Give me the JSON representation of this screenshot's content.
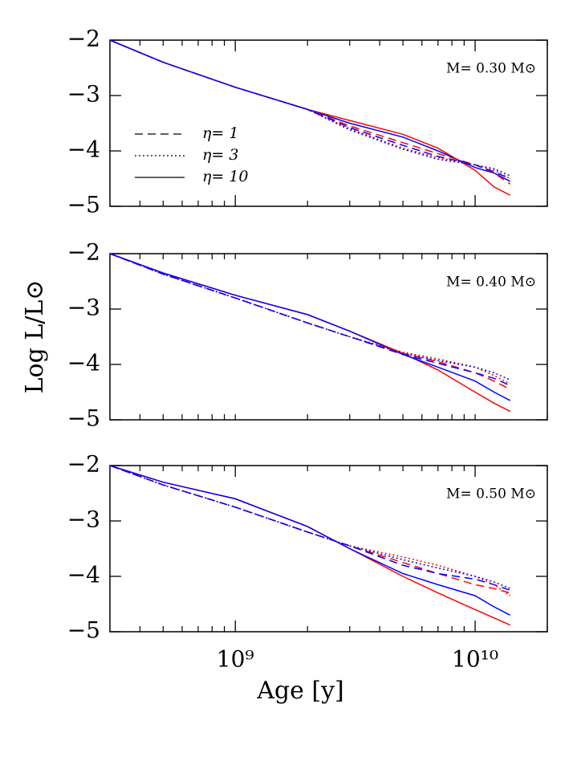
{
  "chart_data": [
    {
      "type": "line",
      "annotation": "M= 0.30 M⊙",
      "x": [
        300000000,
        500000000,
        1000000000,
        2000000000,
        3000000000,
        5000000000,
        7000000000,
        10000000000,
        12000000000,
        14000000000
      ],
      "xlim": [
        300000000,
        20000000000
      ],
      "log_x": true,
      "xticks": [
        {
          "value": 1000000000,
          "label": "10⁹"
        },
        {
          "value": 10000000000,
          "label": "10¹⁰"
        }
      ],
      "xticks_minor": [
        400000000,
        500000000,
        600000000,
        700000000,
        800000000,
        900000000,
        2000000000,
        3000000000,
        4000000000,
        5000000000,
        6000000000,
        7000000000,
        8000000000,
        9000000000,
        20000000000
      ],
      "ylim": [
        -5,
        -2
      ],
      "yticks": [
        {
          "value": -2,
          "label": "−2"
        },
        {
          "value": -3,
          "label": "−3"
        },
        {
          "value": -4,
          "label": "−4"
        },
        {
          "value": -5,
          "label": "−5"
        }
      ],
      "legend": [
        {
          "label": "η= 1",
          "dash": "dashed"
        },
        {
          "label": "η= 3",
          "dash": "dotted"
        },
        {
          "label": "η= 10",
          "dash": "solid"
        }
      ],
      "series": [
        {
          "color": "#ff0000",
          "dash": "solid",
          "values": [
            -2,
            -2.4,
            -2.85,
            -3.25,
            -3.45,
            -3.7,
            -3.95,
            -4.35,
            -4.65,
            -4.8
          ]
        },
        {
          "color": "#0000ff",
          "dash": "solid",
          "values": [
            -2,
            -2.4,
            -2.85,
            -3.25,
            -3.5,
            -3.75,
            -4.0,
            -4.3,
            -4.4,
            -4.55
          ]
        },
        {
          "color": "#ff0000",
          "dash": "dashed",
          "values": [
            -2,
            -2.4,
            -2.85,
            -3.25,
            -3.55,
            -3.85,
            -4.05,
            -4.25,
            -4.4,
            -4.6
          ]
        },
        {
          "color": "#0000ff",
          "dash": "dashed",
          "values": [
            -2,
            -2.4,
            -2.85,
            -3.25,
            -3.58,
            -3.9,
            -4.1,
            -4.25,
            -4.38,
            -4.5
          ]
        },
        {
          "color": "#ff0000",
          "dash": "dotted",
          "values": [
            -2,
            -2.4,
            -2.85,
            -3.25,
            -3.6,
            -3.95,
            -4.12,
            -4.25,
            -4.35,
            -4.5
          ]
        },
        {
          "color": "#0000ff",
          "dash": "dotted",
          "values": [
            -2,
            -2.4,
            -2.85,
            -3.25,
            -3.62,
            -3.97,
            -4.15,
            -4.25,
            -4.32,
            -4.45
          ]
        }
      ]
    },
    {
      "type": "line",
      "annotation": "M= 0.40 M⊙",
      "y_label": "Log L/L⊙",
      "x": [
        300000000,
        500000000,
        1000000000,
        2000000000,
        3000000000,
        5000000000,
        7000000000,
        10000000000,
        12000000000,
        14000000000
      ],
      "xlim": [
        300000000,
        20000000000
      ],
      "log_x": true,
      "xticks_minor": [
        400000000,
        500000000,
        600000000,
        700000000,
        800000000,
        900000000,
        1000000000,
        2000000000,
        3000000000,
        4000000000,
        5000000000,
        6000000000,
        7000000000,
        8000000000,
        9000000000,
        10000000000,
        20000000000
      ],
      "ylim": [
        -5,
        -2
      ],
      "yticks": [
        {
          "value": -2,
          "label": "−2"
        },
        {
          "value": -3,
          "label": "−3"
        },
        {
          "value": -4,
          "label": "−4"
        },
        {
          "value": -5,
          "label": "−5"
        }
      ],
      "series": [
        {
          "color": "#ff0000",
          "dash": "solid",
          "values": [
            -2,
            -2.35,
            -2.75,
            -3.1,
            -3.4,
            -3.8,
            -4.1,
            -4.5,
            -4.7,
            -4.85
          ]
        },
        {
          "color": "#0000ff",
          "dash": "solid",
          "values": [
            -2,
            -2.35,
            -2.75,
            -3.1,
            -3.4,
            -3.82,
            -4.05,
            -4.3,
            -4.5,
            -4.65
          ]
        },
        {
          "color": "#ff0000",
          "dash": "dashed",
          "values": [
            -2,
            -2.37,
            -2.8,
            -3.25,
            -3.5,
            -3.8,
            -3.95,
            -4.15,
            -4.3,
            -4.45
          ]
        },
        {
          "color": "#0000ff",
          "dash": "dashed",
          "values": [
            -2,
            -2.37,
            -2.8,
            -3.25,
            -3.5,
            -3.82,
            -3.98,
            -4.15,
            -4.25,
            -4.38
          ]
        },
        {
          "color": "#ff0000",
          "dash": "dotted",
          "values": [
            -2,
            -2.37,
            -2.8,
            -3.25,
            -3.5,
            -3.78,
            -3.9,
            -4.05,
            -4.2,
            -4.35
          ]
        },
        {
          "color": "#0000ff",
          "dash": "dotted",
          "values": [
            -2,
            -2.37,
            -2.8,
            -3.25,
            -3.5,
            -3.8,
            -3.93,
            -4.05,
            -4.15,
            -4.28
          ]
        }
      ]
    },
    {
      "type": "line",
      "annotation": "M= 0.50 M⊙",
      "x_label": "Age [y]",
      "x": [
        300000000,
        500000000,
        1000000000,
        2000000000,
        3000000000,
        5000000000,
        7000000000,
        10000000000,
        12000000000,
        14000000000
      ],
      "xlim": [
        300000000,
        20000000000
      ],
      "log_x": true,
      "xticks": [
        {
          "value": 1000000000,
          "label": "10⁹"
        },
        {
          "value": 10000000000,
          "label": "10¹⁰"
        }
      ],
      "xticks_minor": [
        400000000,
        500000000,
        600000000,
        700000000,
        800000000,
        900000000,
        2000000000,
        3000000000,
        4000000000,
        5000000000,
        6000000000,
        7000000000,
        8000000000,
        9000000000,
        20000000000
      ],
      "ylim": [
        -5,
        -2
      ],
      "yticks": [
        {
          "value": -2,
          "label": "−2"
        },
        {
          "value": -3,
          "label": "−3"
        },
        {
          "value": -4,
          "label": "−4"
        },
        {
          "value": -5,
          "label": "−5"
        }
      ],
      "series": [
        {
          "color": "#ff0000",
          "dash": "solid",
          "values": [
            -2,
            -2.3,
            -2.6,
            -3.1,
            -3.5,
            -4.0,
            -4.3,
            -4.6,
            -4.75,
            -4.88
          ]
        },
        {
          "color": "#0000ff",
          "dash": "solid",
          "values": [
            -2,
            -2.3,
            -2.6,
            -3.1,
            -3.5,
            -3.95,
            -4.15,
            -4.35,
            -4.55,
            -4.7
          ]
        },
        {
          "color": "#ff0000",
          "dash": "dashed",
          "values": [
            -2,
            -2.35,
            -2.75,
            -3.2,
            -3.45,
            -3.75,
            -3.95,
            -4.15,
            -4.22,
            -4.3
          ]
        },
        {
          "color": "#0000ff",
          "dash": "dashed",
          "values": [
            -2,
            -2.35,
            -2.75,
            -3.2,
            -3.45,
            -3.8,
            -3.95,
            -4.05,
            -4.15,
            -4.25
          ]
        },
        {
          "color": "#ff0000",
          "dash": "dotted",
          "values": [
            -2,
            -2.35,
            -2.75,
            -3.2,
            -3.45,
            -3.65,
            -3.8,
            -4.0,
            -4.15,
            -4.35
          ]
        },
        {
          "color": "#0000ff",
          "dash": "dotted",
          "values": [
            -2,
            -2.35,
            -2.75,
            -3.2,
            -3.45,
            -3.7,
            -3.85,
            -4.0,
            -4.1,
            -4.22
          ]
        }
      ]
    }
  ]
}
